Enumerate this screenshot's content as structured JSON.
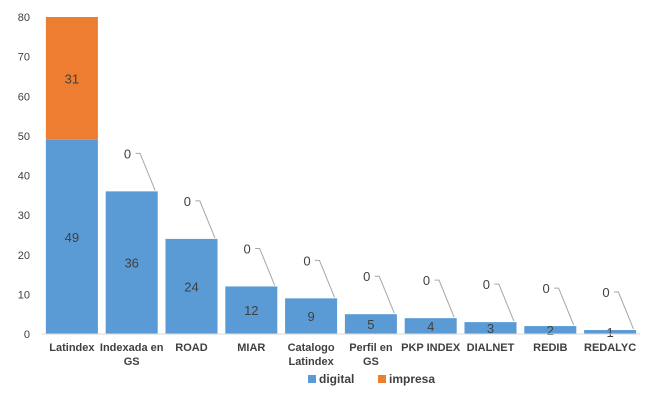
{
  "chart_data": {
    "type": "bar",
    "stacked": true,
    "categories": [
      "Latindex",
      "Indexada en GS",
      "ROAD",
      "MIAR",
      "Catalogo Latindex",
      "Perfil en GS",
      "PKP INDEX",
      "DIALNET",
      "REDIB",
      "REDALYC"
    ],
    "series": [
      {
        "name": "digital",
        "color": "#5B9BD5",
        "values": [
          49,
          36,
          24,
          12,
          9,
          5,
          4,
          3,
          2,
          1
        ]
      },
      {
        "name": "impresa",
        "color": "#ED7D31",
        "values": [
          31,
          0,
          0,
          0,
          0,
          0,
          0,
          0,
          0,
          0
        ]
      }
    ],
    "ylim": [
      0,
      80
    ],
    "yticks": [
      0,
      10,
      20,
      30,
      40,
      50,
      60,
      70,
      80
    ],
    "grid": false,
    "legend": "bottom-center"
  }
}
